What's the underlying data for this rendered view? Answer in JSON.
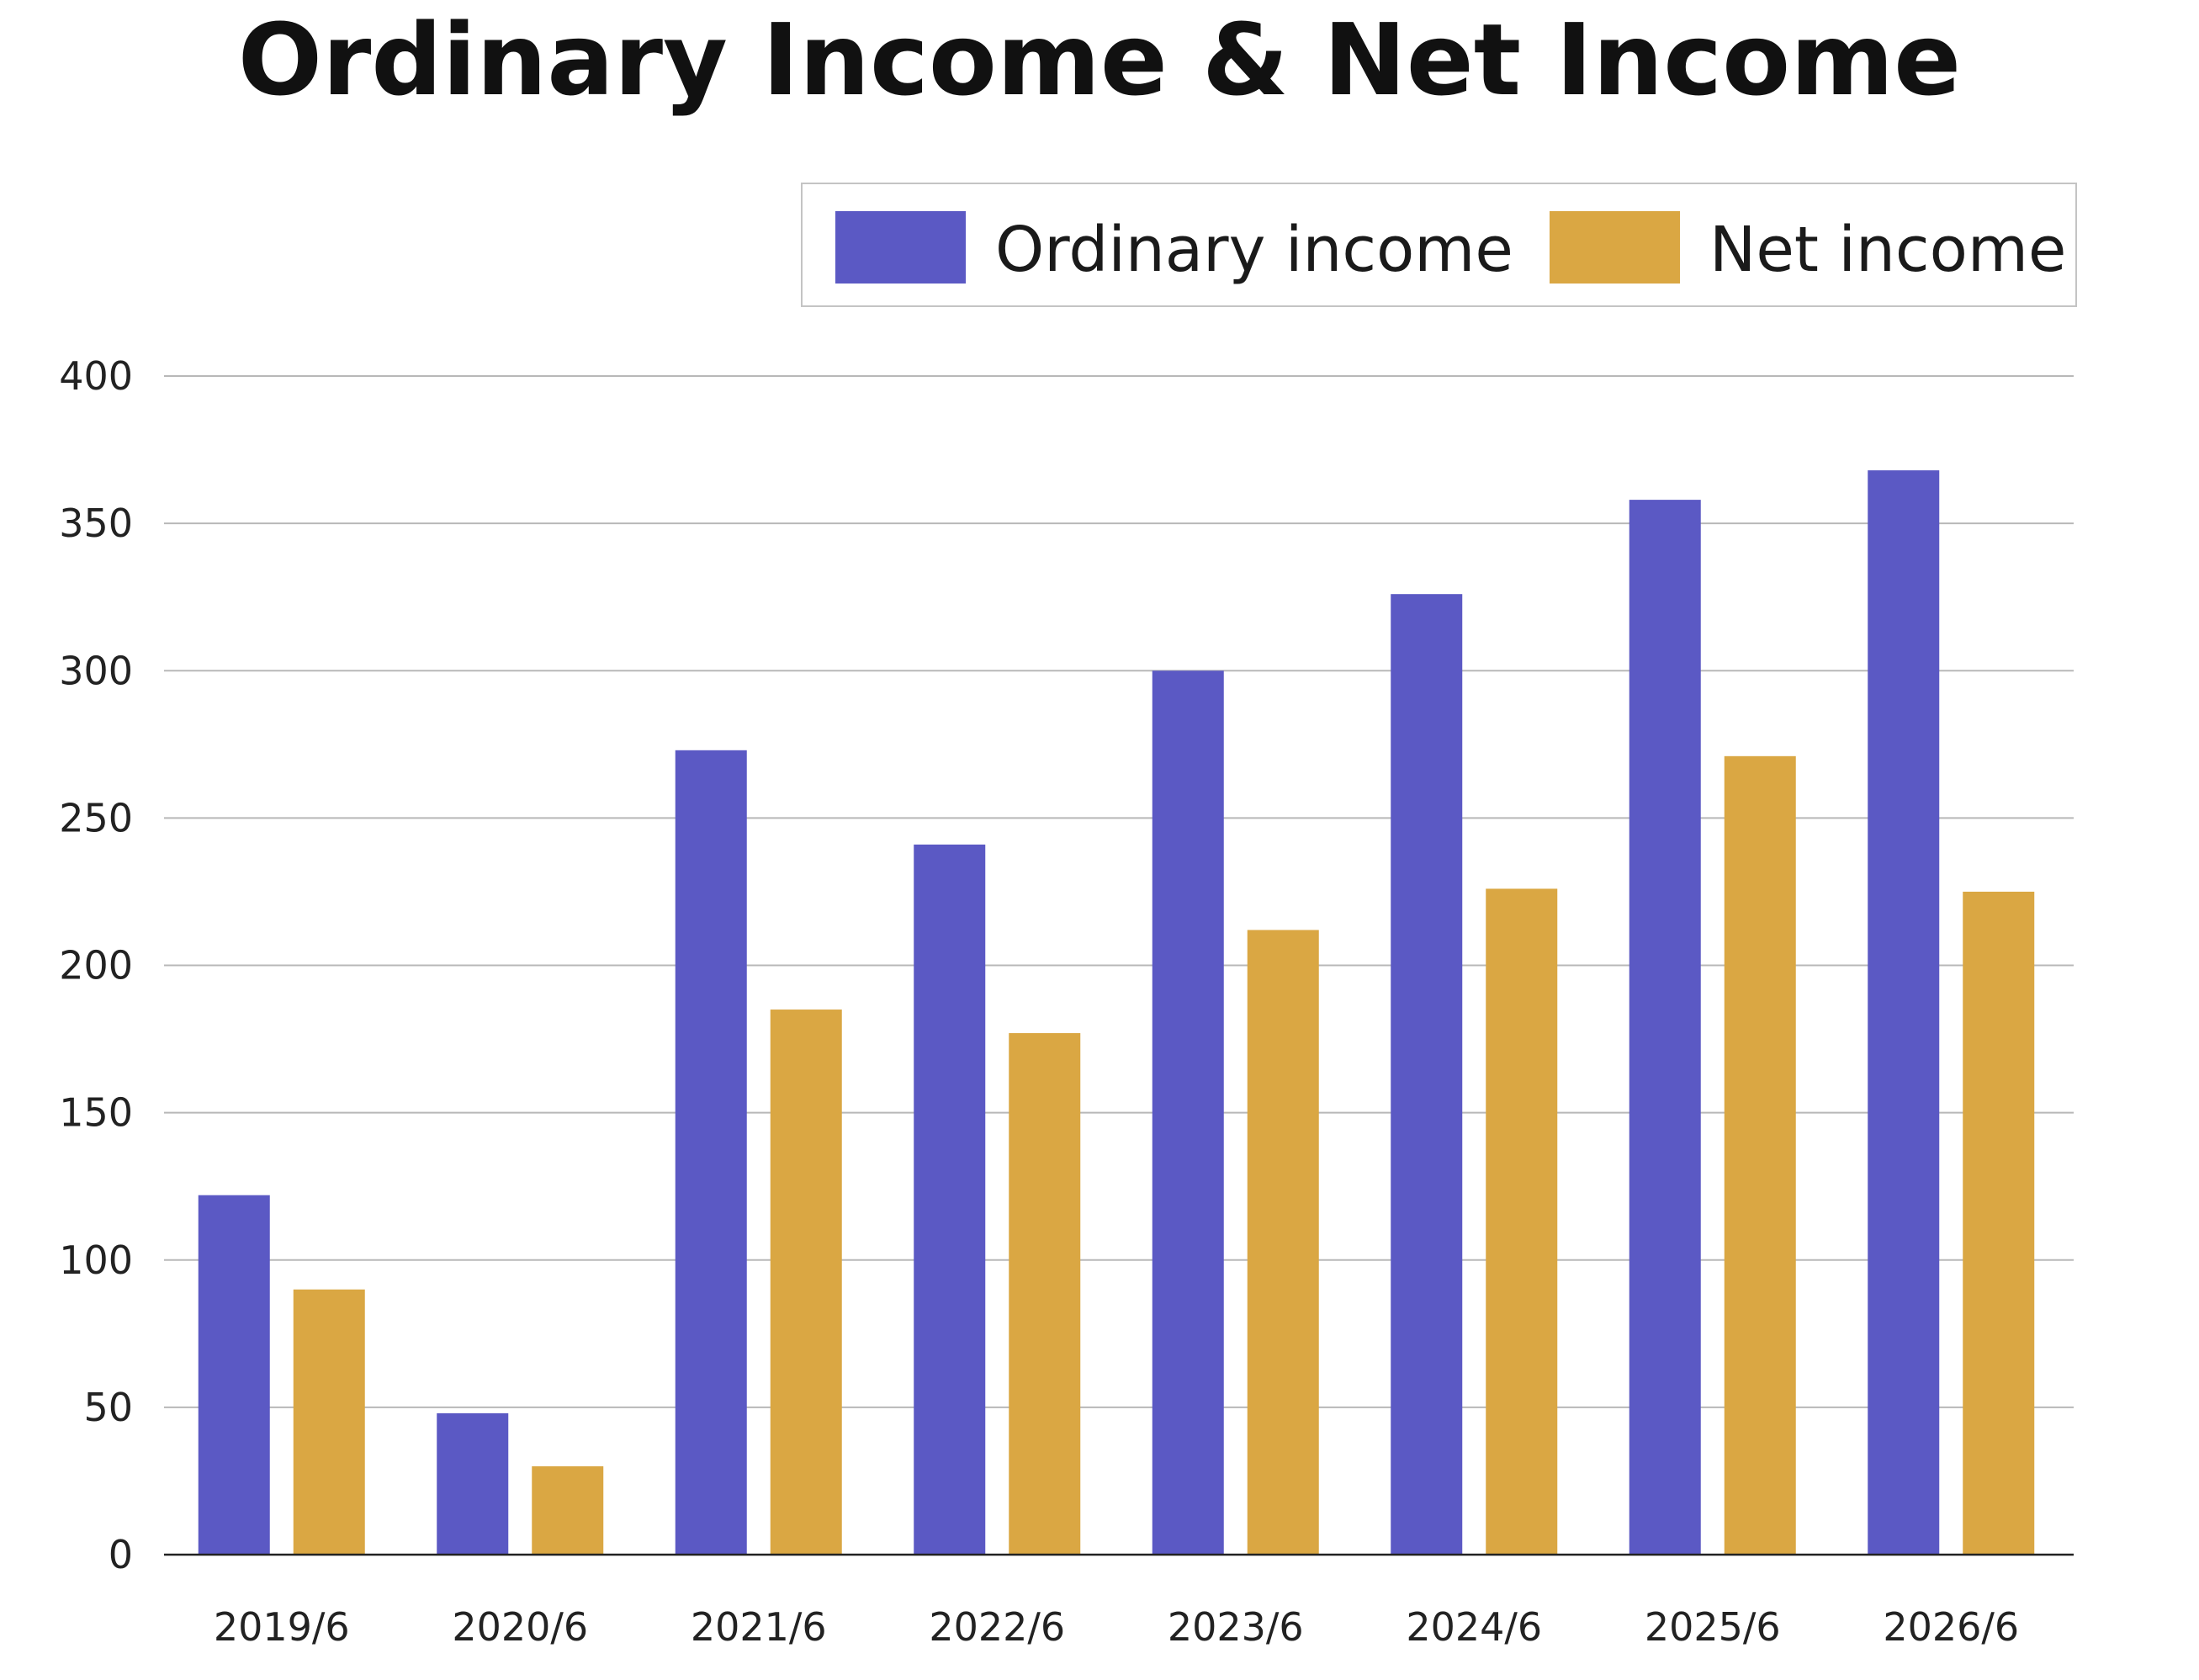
{
  "chart_data": {
    "type": "bar",
    "title": "Ordinary Income & Net Income",
    "categories": [
      "2019/6",
      "2020/6",
      "2021/6",
      "2022/6",
      "2023/6",
      "2024/6",
      "2025/6",
      "2026/6"
    ],
    "series": [
      {
        "name": "Ordinary income",
        "color": "#5b59c4",
        "values": [
          122,
          48,
          273,
          241,
          300,
          326,
          358,
          368
        ]
      },
      {
        "name": "Net income",
        "color": "#daa743",
        "values": [
          90,
          30,
          185,
          177,
          212,
          226,
          271,
          225
        ]
      }
    ],
    "ylim": [
      0,
      400
    ],
    "yticks": [
      0,
      50,
      100,
      150,
      200,
      250,
      300,
      350,
      400
    ],
    "grid": true,
    "legend": "top-right",
    "xlabel": "",
    "ylabel": ""
  }
}
